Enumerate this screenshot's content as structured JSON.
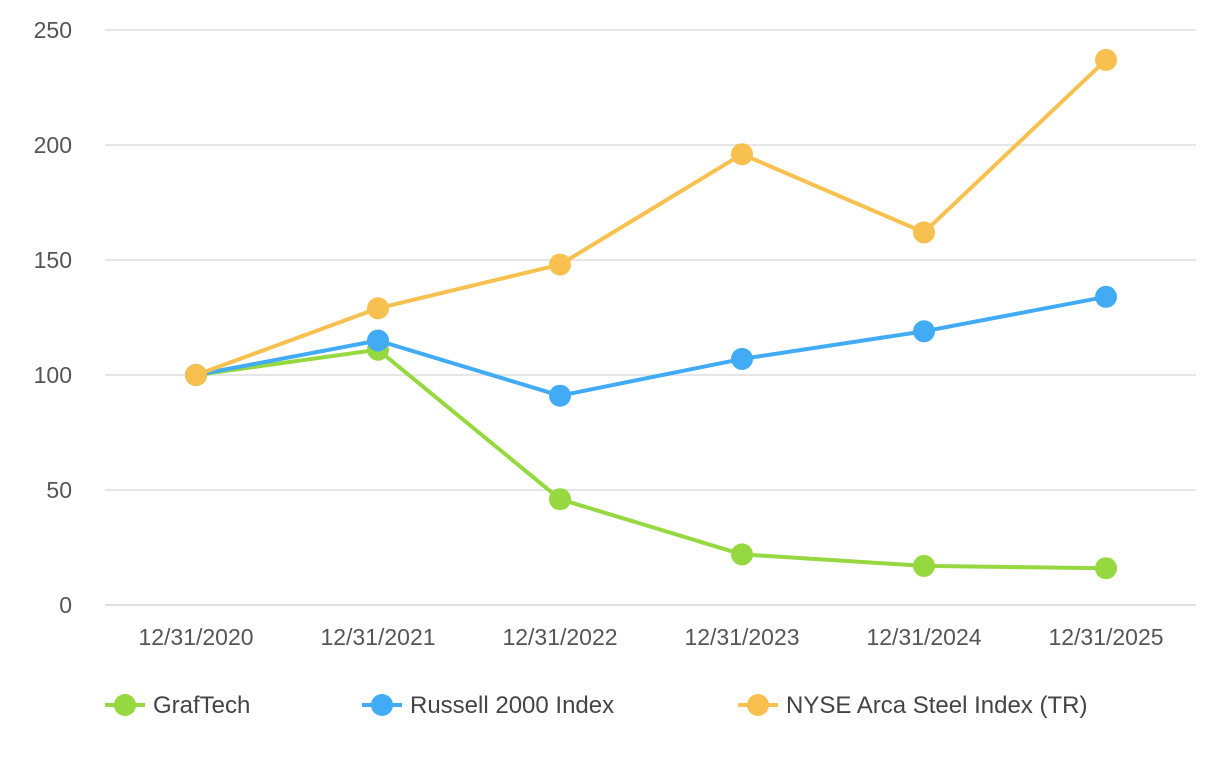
{
  "chart_data": {
    "type": "line",
    "title": "",
    "xlabel": "",
    "ylabel": "",
    "categories": [
      "12/31/2020",
      "12/31/2021",
      "12/31/2022",
      "12/31/2023",
      "12/31/2024",
      "12/31/2025"
    ],
    "ylim": [
      0,
      250
    ],
    "yticks": [
      0,
      50,
      100,
      150,
      200,
      250
    ],
    "grid": true,
    "legend_position": "bottom",
    "series": [
      {
        "name": "GrafTech",
        "color": "#95d840",
        "values": [
          100,
          111,
          46,
          22,
          17,
          16
        ]
      },
      {
        "name": "Russell 2000 Index",
        "color": "#41abf5",
        "values": [
          100,
          115,
          91,
          107,
          119,
          134
        ]
      },
      {
        "name": "NYSE Arca Steel Index (TR)",
        "color": "#f8c04e",
        "values": [
          100,
          129,
          148,
          196,
          162,
          237
        ]
      }
    ]
  }
}
